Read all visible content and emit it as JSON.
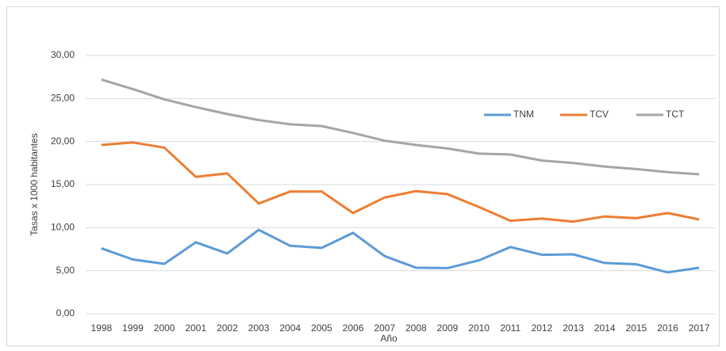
{
  "chart_data": {
    "type": "line",
    "x_label": "Año",
    "y_label": "Tasas x 1000 habitantes",
    "categories": [
      "1998",
      "1999",
      "2000",
      "2001",
      "2002",
      "2003",
      "2004",
      "2005",
      "2006",
      "2007",
      "2008",
      "2009",
      "2010",
      "2011",
      "2012",
      "2013",
      "2014",
      "2015",
      "2016",
      "2017"
    ],
    "series": [
      {
        "name": "TNM",
        "color": "#5b9bd5",
        "values": [
          7.6,
          6.3,
          5.8,
          8.3,
          7.0,
          9.75,
          7.9,
          7.65,
          9.4,
          6.7,
          5.35,
          5.3,
          6.2,
          7.75,
          6.85,
          6.9,
          5.9,
          5.75,
          4.8,
          5.35
        ]
      },
      {
        "name": "TCV",
        "color": "#ed7d31",
        "values": [
          19.6,
          19.9,
          19.3,
          15.9,
          16.3,
          12.8,
          14.2,
          14.2,
          11.7,
          13.5,
          14.25,
          13.9,
          12.4,
          10.8,
          11.05,
          10.7,
          11.3,
          11.1,
          11.7,
          10.95
        ]
      },
      {
        "name": "TCT",
        "color": "#a5a5a5",
        "values": [
          27.2,
          26.1,
          24.9,
          24.0,
          23.2,
          22.5,
          22.0,
          21.8,
          21.0,
          20.1,
          19.6,
          19.2,
          18.6,
          18.5,
          17.8,
          17.5,
          17.1,
          16.8,
          16.45,
          16.2
        ]
      }
    ],
    "ylim": [
      0,
      30
    ],
    "yticks": [
      {
        "value": 0,
        "label": "0,00"
      },
      {
        "value": 5,
        "label": "5,00"
      },
      {
        "value": 10,
        "label": "10,00"
      },
      {
        "value": 15,
        "label": "15,00"
      },
      {
        "value": 20,
        "label": "20,00"
      },
      {
        "value": 25,
        "label": "25,00"
      },
      {
        "value": 30,
        "label": "30,00"
      }
    ],
    "grid": true
  }
}
